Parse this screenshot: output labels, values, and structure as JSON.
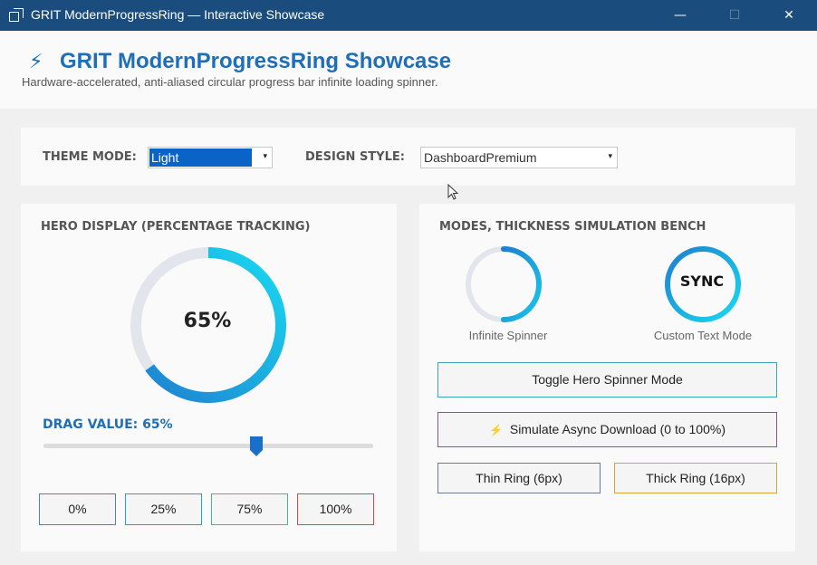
{
  "window": {
    "title": "GRIT ModernProgressRing — Interactive Showcase",
    "min_glyph": "—",
    "max_glyph": "☐",
    "close_glyph": "✕"
  },
  "header": {
    "icon": "lightning-icon",
    "bolt_glyph": "⚡",
    "title": "GRIT ModernProgressRing Showcase",
    "subtitle": "Hardware-accelerated, anti-aliased circular progress bar  infinite loading spinner."
  },
  "theme_bar": {
    "theme_label": "THEME MODE:",
    "theme_value": "Light",
    "design_label": "DESIGN STYLE:",
    "design_value": "DashboardPremium",
    "arrow_glyph": "▾"
  },
  "hero": {
    "heading": "HERO DISPLAY (PERCENTAGE TRACKING)",
    "percent_text": "65%",
    "progress": 0.65,
    "drag_label": "DRAG VALUE: 65%",
    "slider_value": 0.65,
    "presets": [
      {
        "label": "0%",
        "border": "#5a7da8"
      },
      {
        "label": "25%",
        "border": "#1aa6c8"
      },
      {
        "label": "75%",
        "border": "#3cbf8c"
      },
      {
        "label": "100%",
        "border": "#d94a4a"
      }
    ]
  },
  "bench": {
    "heading": "MODES, THICKNESS  SIMULATION BENCH",
    "spinner_label": "Infinite Spinner",
    "sync_text": "SYNC",
    "custom_label": "Custom Text Mode",
    "toggle_button": "Toggle Hero Spinner Mode",
    "simulate_button": "Simulate Async Download (0 to 100%)",
    "bolt_glyph": "⚡",
    "thin_button": "Thin Ring (6px)",
    "thick_button": "Thick Ring (16px)"
  },
  "colors": {
    "accent": "#1e6fb8",
    "ring_start": "#1e7fd0",
    "ring_end": "#1ad9f0",
    "ring_track": "#e2e6ec",
    "titlebar": "#1a4d7d"
  }
}
